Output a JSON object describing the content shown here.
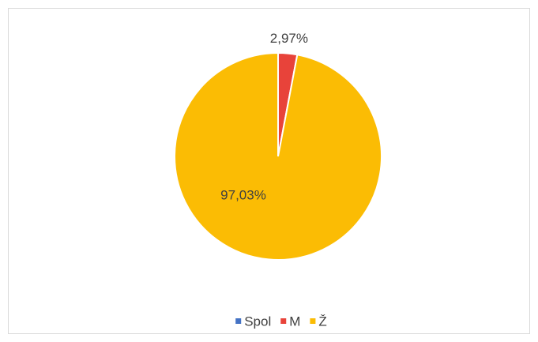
{
  "chart_data": {
    "type": "pie",
    "categories": [
      "Spol",
      "M",
      "Ž"
    ],
    "values": [
      0,
      2.97,
      97.03
    ],
    "value_labels": [
      null,
      "2,97%",
      "97,03%"
    ],
    "colors": [
      "#4472c4",
      "#e8433a",
      "#fbbc04"
    ],
    "legend": "bottom"
  }
}
